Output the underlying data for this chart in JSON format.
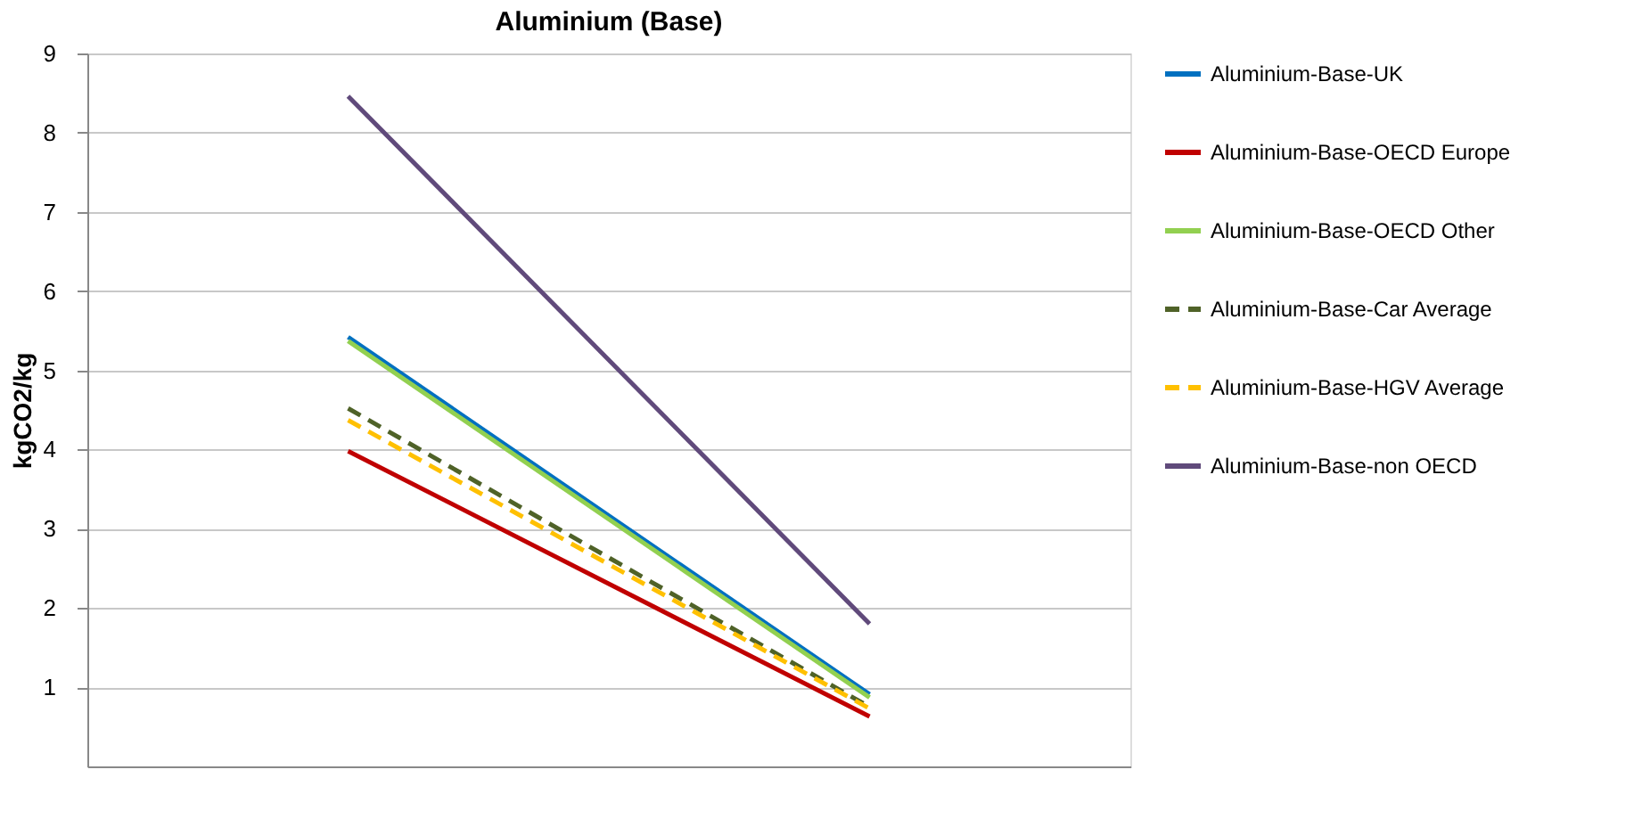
{
  "chart_data": {
    "type": "line",
    "title": "Aluminium  (Base)",
    "ylabel": "kgCO2/kg",
    "categories": [
      null,
      null
    ],
    "series": [
      {
        "name": "Aluminium-Base-UK",
        "color": "#0070c0",
        "values": [
          5.42,
          0.91
        ]
      },
      {
        "name": "Aluminium-Base-OECD Europe",
        "color": "#c00000",
        "values": [
          3.98,
          0.63
        ]
      },
      {
        "name": "Aluminium-Base-OECD Other",
        "color": "#92d050",
        "values": [
          5.37,
          0.87
        ]
      },
      {
        "name": "Aluminium-Base-Car Average",
        "color": "#4f6228",
        "values": [
          4.52,
          0.75
        ],
        "line_style": "dashed"
      },
      {
        "name": "Aluminium-Base-HGV Average",
        "color": "#ffc000",
        "values": [
          4.37,
          0.73
        ],
        "line_style": "dashed"
      },
      {
        "name": "Aluminium-Base-non OECD",
        "color": "#604a7b",
        "values": [
          8.46,
          1.8
        ]
      }
    ],
    "ylim": [
      0,
      9
    ],
    "yticks": [
      1,
      2,
      3,
      4,
      5,
      6,
      7,
      8,
      9
    ],
    "grid": "y",
    "legend": "right",
    "marker": "none",
    "line_style": "solid"
  }
}
